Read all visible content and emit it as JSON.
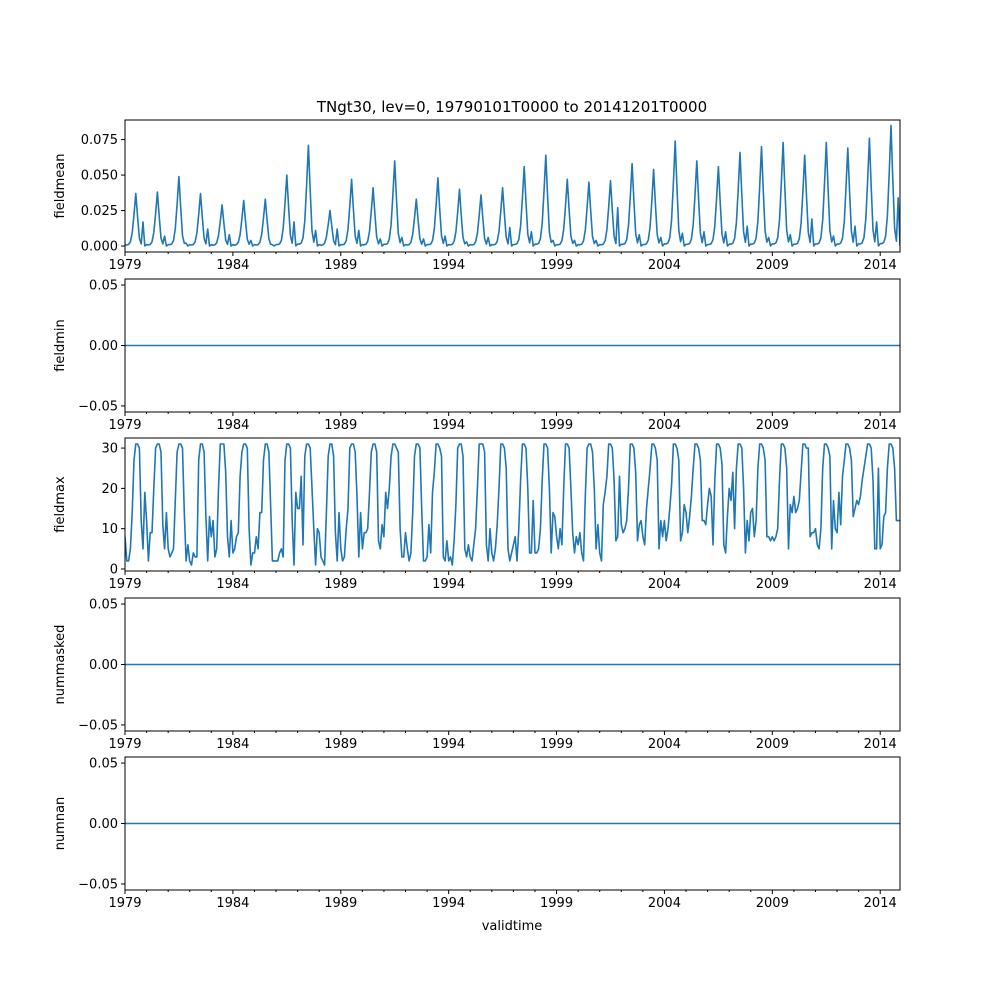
{
  "chart_data": {
    "type": "line",
    "title": "TNgt30, lev=0, 19790101T0000 to 20141201T0000",
    "xlabel": "validtime",
    "x_start": "1979-01",
    "x_end": "2014-12",
    "frequency": "monthly",
    "xlim_years": [
      1979,
      2014.917
    ],
    "xticks": [
      "1979",
      "1984",
      "1989",
      "1994",
      "1999",
      "2004",
      "2009",
      "2014"
    ],
    "line_color": "#1f77b4",
    "panels": [
      {
        "ylabel": "fieldmean",
        "ylim": [
          -0.0042,
          0.0888
        ],
        "yticks": [
          "0.000",
          "0.025",
          "0.050",
          "0.075"
        ],
        "ytick_values": [
          0,
          0.025,
          0.05,
          0.075
        ],
        "seasonal_shape_jan_to_dec": [
          0.02,
          0.02,
          0.03,
          0.08,
          0.25,
          0.6,
          1.0,
          0.55,
          0.15,
          0.04,
          0.02,
          0.0
        ],
        "annual_july_peak": [
          0.037,
          0.038,
          0.049,
          0.037,
          0.029,
          0.032,
          0.033,
          0.05,
          0.071,
          0.025,
          0.047,
          0.041,
          0.06,
          0.033,
          0.048,
          0.04,
          0.036,
          0.041,
          0.056,
          0.064,
          0.047,
          0.045,
          0.046,
          0.058,
          0.054,
          0.074,
          0.06,
          0.056,
          0.066,
          0.07,
          0.073,
          0.064,
          0.073,
          0.069,
          0.076,
          0.085
        ],
        "annual_winter_bump_nov": [
          0.017,
          0.007,
          0.002,
          0.012,
          0.008,
          0.004,
          0.001,
          0.017,
          0.011,
          0.012,
          0.011,
          0.005,
          0.006,
          0.005,
          0.007,
          0.003,
          0.006,
          0.013,
          0.01,
          0.004,
          0.004,
          0.004,
          0.027,
          0.008,
          0.006,
          0.009,
          0.01,
          0.01,
          0.014,
          0.006,
          0.008,
          0.019,
          0.007,
          0.014,
          0.017,
          0.034
        ]
      },
      {
        "ylabel": "fieldmin",
        "ylim": [
          -0.055,
          0.055
        ],
        "yticks": [
          "−0.05",
          "0.00",
          "0.05"
        ],
        "ytick_values": [
          -0.05,
          0,
          0.05
        ],
        "constant_value": 0
      },
      {
        "ylabel": "fieldmax",
        "ylim": [
          -0.5,
          32.5
        ],
        "yticks": [
          "0",
          "10",
          "20",
          "30"
        ],
        "ytick_values": [
          0,
          10,
          20,
          30
        ],
        "monthly_by_year": [
          [
            8,
            2,
            2,
            5,
            14,
            27,
            31,
            31,
            30,
            12,
            5,
            19
          ],
          [
            12,
            2,
            9,
            9,
            20,
            30,
            31,
            31,
            29,
            11,
            5,
            14
          ],
          [
            5,
            3,
            4,
            5,
            17,
            29,
            31,
            31,
            30,
            14,
            2,
            6
          ],
          [
            2,
            1,
            4,
            3,
            3,
            27,
            31,
            31,
            29,
            13,
            2,
            13
          ],
          [
            8,
            12,
            3,
            5,
            20,
            31,
            31,
            31,
            24,
            8,
            3,
            12
          ],
          [
            4,
            5,
            8,
            9,
            23,
            29,
            31,
            31,
            30,
            10,
            1,
            4
          ],
          [
            4,
            8,
            5,
            14,
            14,
            27,
            31,
            31,
            29,
            16,
            2,
            2
          ],
          [
            2,
            2,
            4,
            5,
            3,
            27,
            31,
            31,
            30,
            12,
            1,
            19
          ],
          [
            15,
            15,
            23,
            6,
            28,
            31,
            31,
            30,
            20,
            10,
            1,
            10
          ],
          [
            9,
            3,
            2,
            1,
            14,
            28,
            31,
            31,
            28,
            9,
            2,
            14
          ],
          [
            5,
            2,
            3,
            10,
            15,
            30,
            31,
            31,
            29,
            18,
            3,
            14
          ],
          [
            5,
            9,
            9,
            10,
            19,
            29,
            31,
            31,
            29,
            7,
            5,
            11
          ],
          [
            8,
            19,
            15,
            20,
            28,
            31,
            31,
            30,
            29,
            10,
            3,
            3
          ],
          [
            9,
            5,
            2,
            4,
            14,
            28,
            31,
            31,
            30,
            15,
            2,
            2
          ],
          [
            3,
            11,
            4,
            19,
            24,
            31,
            31,
            30,
            28,
            3,
            2,
            7
          ],
          [
            2,
            3,
            1,
            7,
            16,
            30,
            31,
            31,
            28,
            5,
            3,
            6
          ],
          [
            3,
            2,
            6,
            10,
            20,
            31,
            31,
            31,
            29,
            6,
            2,
            10
          ],
          [
            4,
            2,
            5,
            11,
            20,
            31,
            31,
            30,
            25,
            5,
            2,
            4
          ],
          [
            6,
            8,
            2,
            10,
            22,
            31,
            31,
            30,
            20,
            4,
            4,
            17
          ],
          [
            4,
            4,
            5,
            10,
            22,
            31,
            31,
            30,
            20,
            4,
            14,
            13
          ],
          [
            8,
            5,
            10,
            6,
            20,
            31,
            31,
            30,
            20,
            9,
            4,
            8
          ],
          [
            6,
            9,
            4,
            2,
            18,
            30,
            31,
            31,
            29,
            20,
            5,
            11
          ],
          [
            4,
            2,
            16,
            19,
            23,
            31,
            31,
            30,
            22,
            7,
            8,
            23
          ],
          [
            11,
            9,
            10,
            12,
            20,
            31,
            31,
            30,
            24,
            7,
            11,
            12
          ],
          [
            8,
            6,
            15,
            20,
            25,
            31,
            31,
            30,
            27,
            5,
            12,
            8
          ],
          [
            12,
            7,
            10,
            15,
            21,
            31,
            31,
            30,
            27,
            7,
            9,
            16
          ],
          [
            14,
            9,
            13,
            18,
            25,
            31,
            31,
            30,
            27,
            12,
            12,
            11
          ],
          [
            16,
            20,
            18,
            6,
            22,
            31,
            31,
            30,
            26,
            6,
            4,
            13
          ],
          [
            20,
            17,
            24,
            10,
            25,
            31,
            31,
            30,
            20,
            4,
            12,
            7
          ],
          [
            14,
            15,
            8,
            12,
            25,
            31,
            31,
            30,
            27,
            8,
            8,
            7
          ],
          [
            8,
            7,
            8,
            10,
            22,
            31,
            31,
            30,
            25,
            5,
            16,
            14
          ],
          [
            18,
            14,
            15,
            17,
            24,
            31,
            31,
            30,
            30,
            8,
            9,
            9
          ],
          [
            10,
            6,
            5,
            10,
            25,
            31,
            31,
            30,
            28,
            5,
            17,
            10
          ],
          [
            9,
            19,
            11,
            23,
            27,
            31,
            31,
            30,
            27,
            13,
            15,
            17
          ],
          [
            16,
            18,
            22,
            25,
            28,
            31,
            31,
            30,
            22,
            5,
            5,
            25
          ],
          [
            5,
            6,
            13,
            14,
            25,
            31,
            31,
            30,
            25,
            12,
            12,
            12
          ]
        ]
      },
      {
        "ylabel": "nummasked",
        "ylim": [
          -0.055,
          0.055
        ],
        "yticks": [
          "−0.05",
          "0.00",
          "0.05"
        ],
        "ytick_values": [
          -0.05,
          0,
          0.05
        ],
        "constant_value": 0
      },
      {
        "ylabel": "numnan",
        "ylim": [
          -0.055,
          0.055
        ],
        "yticks": [
          "−0.05",
          "0.00",
          "0.05"
        ],
        "ytick_values": [
          -0.05,
          0,
          0.05
        ],
        "constant_value": 0
      }
    ]
  }
}
